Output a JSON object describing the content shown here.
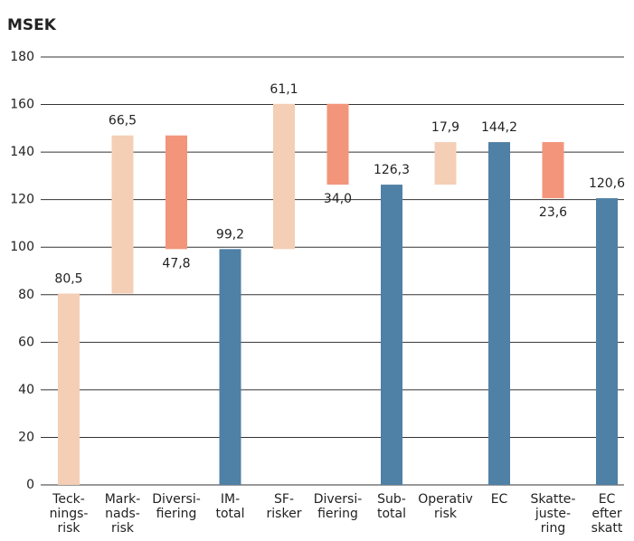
{
  "chart_data": {
    "type": "waterfall",
    "title": "MSEK",
    "categories": [
      "Teck-\nnings-\nrisk",
      "Mark-\nnads-\nrisk",
      "Diversi-\nfiering",
      "IM-\ntotal",
      "SF-\nrisker",
      "Diversi-\nfiering",
      "Sub-\ntotal",
      "Operativ\nrisk",
      "EC",
      "Skatte-\njuste-\nring",
      "EC\nefter\nskatt"
    ],
    "measure": [
      "increase",
      "increase",
      "decrease",
      "total",
      "increase",
      "decrease",
      "total",
      "increase",
      "total",
      "decrease",
      "total"
    ],
    "values": [
      80.5,
      66.5,
      47.8,
      99.2,
      61.1,
      34.0,
      126.3,
      17.9,
      144.2,
      23.6,
      120.6
    ],
    "value_labels": [
      "80,5",
      "66,5",
      "47,8",
      "99,2",
      "61,1",
      "34,0",
      "126,3",
      "17,9",
      "144,2",
      "23,6",
      "120,6"
    ],
    "colors": {
      "increase": "#f4cfb5",
      "decrease": "#f2957a",
      "total": "#4f80a6"
    },
    "ylim": [
      0,
      180
    ],
    "yticks": [
      0,
      20,
      40,
      60,
      80,
      100,
      120,
      140,
      160,
      180
    ],
    "grid": true
  }
}
